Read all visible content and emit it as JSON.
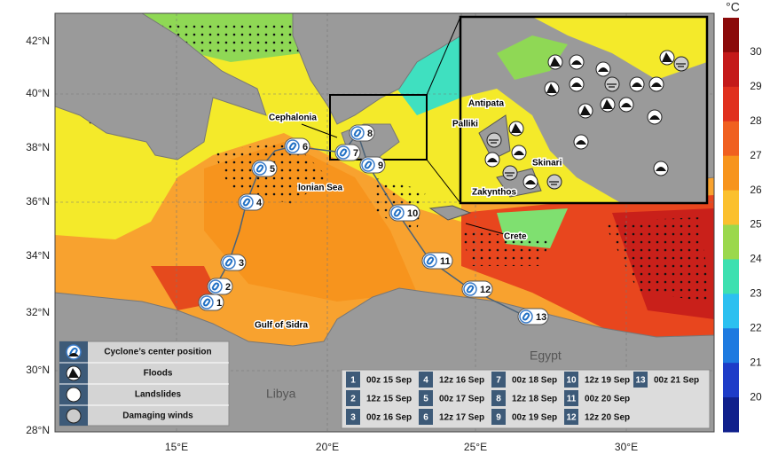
{
  "map": {
    "lat_labels": [
      "42°N",
      "40°N",
      "38°N",
      "36°N",
      "34°N",
      "32°N",
      "30°N",
      "28°N"
    ],
    "lon_labels": [
      "15°E",
      "20°E",
      "25°E",
      "30°E"
    ],
    "colorbar": {
      "unit": "°C",
      "ticks": [
        30,
        29,
        28,
        27,
        26,
        25,
        24,
        23,
        22,
        21,
        20
      ]
    },
    "places": {
      "cephalonia": "Cephalonia",
      "ionian": "Ionian Sea",
      "crete": "Crete",
      "sidra": "Gulf of Sidra",
      "libya": "Libya",
      "egypt": "Egypt"
    },
    "inset_places": {
      "antipata": "Antipata",
      "palliki": "Palliki",
      "skinari": "Skinari",
      "zakynthos": "Zakynthos"
    },
    "track": [
      1,
      2,
      3,
      4,
      5,
      6,
      7,
      8,
      9,
      10,
      11,
      12,
      13
    ],
    "legend": [
      "Cyclone’s center position",
      "Floods",
      "Landslides",
      "Damaging winds"
    ],
    "timeline": [
      {
        "n": 1,
        "time": "00z 15 Sep"
      },
      {
        "n": 2,
        "time": "12z 15 Sep"
      },
      {
        "n": 3,
        "time": "00z 16 Sep"
      },
      {
        "n": 4,
        "time": "12z 16 Sep"
      },
      {
        "n": 5,
        "time": "00z 17 Sep"
      },
      {
        "n": 6,
        "time": "12z 17 Sep"
      },
      {
        "n": 7,
        "time": "00z 18 Sep"
      },
      {
        "n": 8,
        "time": "12z 18 Sep"
      },
      {
        "n": 9,
        "time": "00z 19 Sep"
      },
      {
        "n": 10,
        "time": "12z 19 Sep"
      },
      {
        "n": 11,
        "time": "00z 20 Sep"
      },
      {
        "n": 12,
        "time": "12z 20 Sep"
      },
      {
        "n": 13,
        "time": "00z 21 Sep"
      }
    ]
  }
}
